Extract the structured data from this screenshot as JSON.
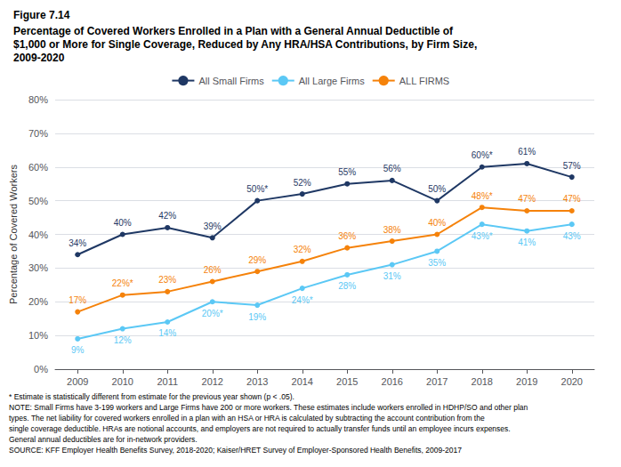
{
  "chart_data": {
    "type": "line",
    "title": "Figure 7.14",
    "subtitle": "Percentage of Covered Workers Enrolled in a Plan with a General Annual Deductible of\n$1,000 or More for Single Coverage, Reduced by Any HRA/HSA Contributions, by Firm Size,\n2009-2020",
    "categories": [
      "2009",
      "2010",
      "2011",
      "2012",
      "2013",
      "2014",
      "2015",
      "2016",
      "2017",
      "2018",
      "2019",
      "2020"
    ],
    "series": [
      {
        "name": "All Small Firms",
        "color": "#1f3864",
        "marker": "circle",
        "values": [
          34,
          40,
          42,
          39,
          50,
          52,
          55,
          56,
          50,
          60,
          61,
          57
        ],
        "value_labels": [
          "34%",
          "40%",
          "42%",
          "39%",
          "50%*",
          "52%",
          "55%",
          "56%",
          "50%",
          "60%*",
          "61%",
          "57%"
        ]
      },
      {
        "name": "All Large Firms",
        "color": "#5bc8f5",
        "marker": "circle",
        "values": [
          9,
          12,
          14,
          20,
          19,
          24,
          28,
          31,
          35,
          43,
          41,
          43
        ],
        "value_labels": [
          "9%",
          "12%",
          "14%",
          "20%*",
          "19%",
          "24%*",
          "28%",
          "31%",
          "35%",
          "43%*",
          "41%",
          "43%"
        ]
      },
      {
        "name": "ALL FIRMS",
        "color": "#f5820a",
        "marker": "circle",
        "values": [
          17,
          22,
          23,
          26,
          29,
          32,
          36,
          38,
          40,
          48,
          47,
          47
        ],
        "value_labels": [
          "17%",
          "22%*",
          "23%",
          "26%",
          "29%",
          "32%",
          "36%",
          "38%",
          "40%",
          "48%*",
          "47%",
          "47%"
        ]
      }
    ],
    "ylabel": "Percentage of Covered Workers",
    "ylim": [
      0,
      80
    ],
    "yticks": [
      {
        "value": 0,
        "label": "0%"
      },
      {
        "value": 10,
        "label": "10%"
      },
      {
        "value": 20,
        "label": "20%"
      },
      {
        "value": 30,
        "label": "30%"
      },
      {
        "value": 40,
        "label": "40%"
      },
      {
        "value": 50,
        "label": "50%"
      },
      {
        "value": 60,
        "label": "60%"
      },
      {
        "value": 70,
        "label": "70%"
      },
      {
        "value": 80,
        "label": "80%"
      }
    ],
    "grid": true,
    "legend": "top",
    "data_labels": true,
    "annotations": [
      "* Estimate is statistically different from estimate for the previous year shown (p < .05).",
      "NOTE: Small Firms have 3-199 workers and Large Firms have 200 or more workers. These estimates include workers enrolled in HDHP/SO and other plan",
      "types. The net liability for covered workers enrolled in a plan with an HSA or HRA is calculated by subtracting the account contribution from the",
      "single coverage deductible. HRAs are notional accounts, and employers are not required to actually transfer funds until an employee incurs expenses.",
      "General annual deductibles are for in-network providers.",
      "SOURCE: KFF Employer Health Benefits Survey, 2018-2020; Kaiser/HRET Survey of Employer-Sponsored Health Benefits, 2009-2017"
    ]
  }
}
